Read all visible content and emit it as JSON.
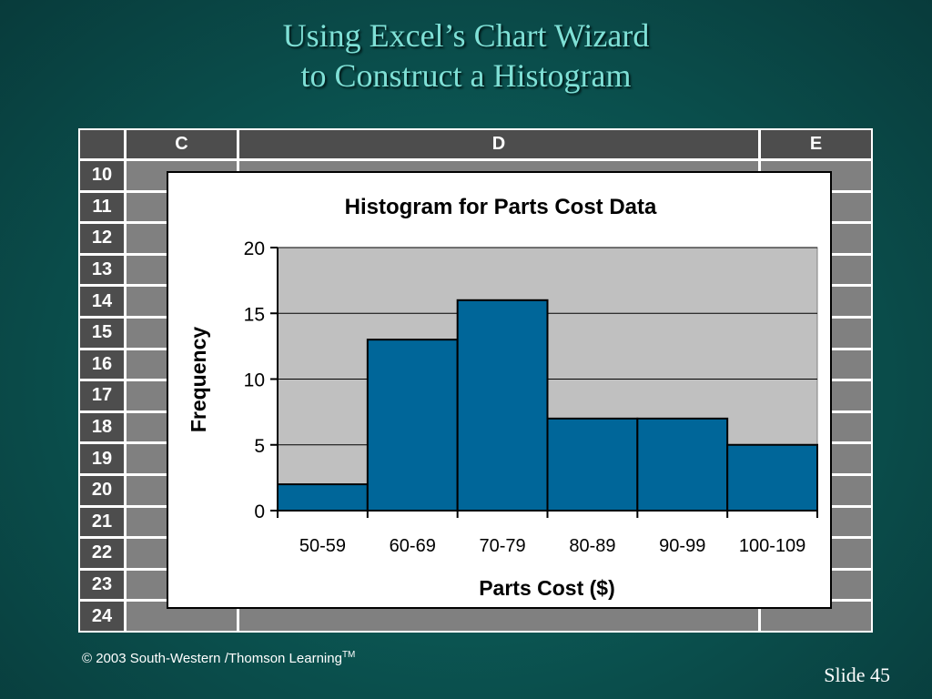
{
  "slide": {
    "title_line1": "Using Excel’s Chart Wizard",
    "title_line2": "to Construct a Histogram",
    "footer_text": "© 2003  South-Western /Thomson Learning",
    "footer_tm": "TM",
    "slide_label": "Slide 45"
  },
  "spreadsheet": {
    "columns": [
      "C",
      "D",
      "E"
    ],
    "rows": [
      "10",
      "11",
      "12",
      "13",
      "14",
      "15",
      "16",
      "17",
      "18",
      "19",
      "20",
      "21",
      "22",
      "23",
      "24"
    ],
    "header_color": "#4d4d4d",
    "cell_color": "#808080"
  },
  "chart_data": {
    "type": "bar",
    "title": "Histogram for Parts Cost Data",
    "xlabel": "Parts Cost ($)",
    "ylabel": "Frequency",
    "categories": [
      "50-59",
      "60-69",
      "70-79",
      "80-89",
      "90-99",
      "100-109"
    ],
    "values": [
      2,
      13,
      16,
      7,
      7,
      5
    ],
    "ylim": [
      0,
      20
    ],
    "yticks": [
      0,
      5,
      10,
      15,
      20
    ],
    "grid": true,
    "bar_color": "#006699",
    "plot_background": "#c0c0c0"
  }
}
